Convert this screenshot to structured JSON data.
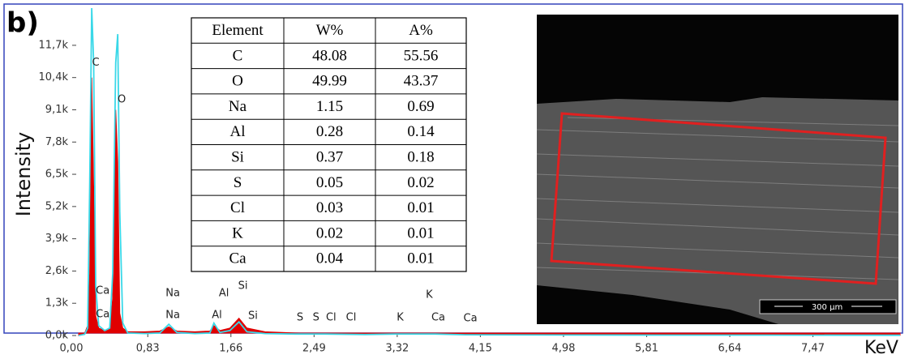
{
  "panel_label": "b)",
  "chart_data": {
    "type": "spectrum",
    "y_label": "Intensity",
    "x_label": "KeV",
    "xlim": [
      0.14,
      8.34
    ],
    "ylim": [
      0,
      13200
    ],
    "xticks": [
      {
        "value": 0,
        "label": "0,00"
      },
      {
        "value": 0.83,
        "label": "0,83"
      },
      {
        "value": 1.66,
        "label": "1,66"
      },
      {
        "value": 2.49,
        "label": "2,49"
      },
      {
        "value": 3.32,
        "label": "3,32"
      },
      {
        "value": 4.15,
        "label": "4,15"
      },
      {
        "value": 4.98,
        "label": "4,98"
      },
      {
        "value": 5.81,
        "label": "5,81"
      },
      {
        "value": 6.64,
        "label": "6,64"
      },
      {
        "value": 7.47,
        "label": "7,47"
      }
    ],
    "yticks": [
      {
        "value": 0,
        "label": "0,0k"
      },
      {
        "value": 1300,
        "label": "1,3k"
      },
      {
        "value": 2600,
        "label": "2,6k"
      },
      {
        "value": 3900,
        "label": "3,9k"
      },
      {
        "value": 5200,
        "label": "5,2k"
      },
      {
        "value": 6500,
        "label": "6,5k"
      },
      {
        "value": 7800,
        "label": "7,8k"
      },
      {
        "value": 9100,
        "label": "9,1k"
      },
      {
        "value": 10400,
        "label": "10,4k"
      },
      {
        "value": 11700,
        "label": "11,7k"
      }
    ],
    "x": [
      0.14,
      0.2,
      0.23,
      0.25,
      0.27,
      0.29,
      0.31,
      0.34,
      0.4,
      0.45,
      0.48,
      0.51,
      0.53,
      0.55,
      0.58,
      0.63,
      0.8,
      0.95,
      1.04,
      1.12,
      1.3,
      1.45,
      1.49,
      1.55,
      1.65,
      1.74,
      1.82,
      2.0,
      2.3,
      2.6,
      3.0,
      3.3,
      3.7,
      4.0,
      5.0,
      6.0,
      7.0,
      8.34
    ],
    "series": [
      {
        "color": "#e00000",
        "fill": true,
        "values": [
          0,
          100,
          400,
          2500,
          10400,
          6000,
          800,
          300,
          200,
          300,
          1500,
          9100,
          7000,
          900,
          300,
          150,
          150,
          180,
          350,
          180,
          150,
          180,
          400,
          200,
          300,
          700,
          300,
          150,
          100,
          80,
          60,
          60,
          60,
          40,
          30,
          20,
          20,
          10
        ]
      },
      {
        "color": "#3ad8e8",
        "fill": false,
        "values": [
          0,
          50,
          300,
          6000,
          13200,
          11000,
          2000,
          400,
          200,
          300,
          2500,
          11000,
          12150,
          5000,
          500,
          100,
          80,
          100,
          450,
          120,
          80,
          100,
          500,
          120,
          200,
          550,
          150,
          80,
          60,
          60,
          40,
          60,
          60,
          30,
          20,
          15,
          15,
          10
        ]
      }
    ],
    "annotations": [
      {
        "text": "C",
        "x": 0.31,
        "y": 11000
      },
      {
        "text": "O",
        "x": 0.57,
        "y": 9500
      },
      {
        "text": "Ca",
        "x": 0.38,
        "y": 1800
      },
      {
        "text": "Ca",
        "x": 0.38,
        "y": 850
      },
      {
        "text": "Na",
        "x": 1.08,
        "y": 1700
      },
      {
        "text": "Na",
        "x": 1.08,
        "y": 820
      },
      {
        "text": "Al",
        "x": 1.59,
        "y": 1700
      },
      {
        "text": "Al",
        "x": 1.52,
        "y": 820
      },
      {
        "text": "Si",
        "x": 1.78,
        "y": 2000
      },
      {
        "text": "Si",
        "x": 1.88,
        "y": 780
      },
      {
        "text": "S",
        "x": 2.35,
        "y": 720
      },
      {
        "text": "S",
        "x": 2.51,
        "y": 720
      },
      {
        "text": "Cl",
        "x": 2.66,
        "y": 720
      },
      {
        "text": "Cl",
        "x": 2.86,
        "y": 720
      },
      {
        "text": "K",
        "x": 3.35,
        "y": 720
      },
      {
        "text": "K",
        "x": 3.64,
        "y": 1630
      },
      {
        "text": "Ca",
        "x": 3.73,
        "y": 720
      },
      {
        "text": "Ca",
        "x": 4.05,
        "y": 690
      }
    ]
  },
  "table": {
    "header": [
      "Element",
      "W%",
      "A%"
    ],
    "rows": [
      [
        "C",
        48.08,
        55.56
      ],
      [
        "O",
        49.99,
        43.37
      ],
      [
        "Na",
        1.15,
        0.69
      ],
      [
        "Al",
        0.28,
        0.14
      ],
      [
        "Si",
        0.37,
        0.18
      ],
      [
        "S",
        0.05,
        0.02
      ],
      [
        "Cl",
        0.03,
        0.01
      ],
      [
        "K",
        0.02,
        0.01
      ],
      [
        "Ca",
        0.04,
        0.01
      ]
    ]
  },
  "image": {
    "scale_bar": "300 µm"
  }
}
